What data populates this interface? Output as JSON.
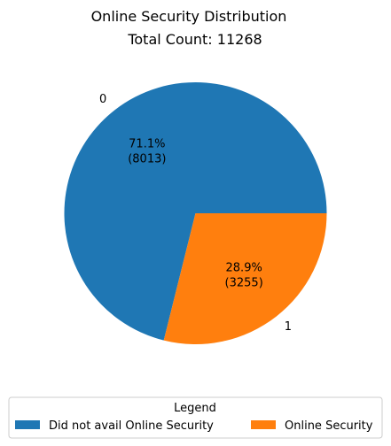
{
  "chart_data": {
    "type": "pie",
    "title": "Online Security Distribution",
    "subtitle": "Total Count: 11268",
    "slices": [
      {
        "label": "0",
        "value": 8013,
        "percent": "71.1%",
        "count_text": "(8013)",
        "color": "#1f77b4"
      },
      {
        "label": "1",
        "value": 3255,
        "percent": "28.9%",
        "count_text": "(3255)",
        "color": "#ff7f0e"
      }
    ],
    "legend": {
      "title": "Legend",
      "placement": "bottom-center",
      "entries": [
        {
          "label": "Did not avail Online Security",
          "color": "#1f77b4"
        },
        {
          "label": "Online Security",
          "color": "#ff7f0e"
        }
      ]
    }
  }
}
